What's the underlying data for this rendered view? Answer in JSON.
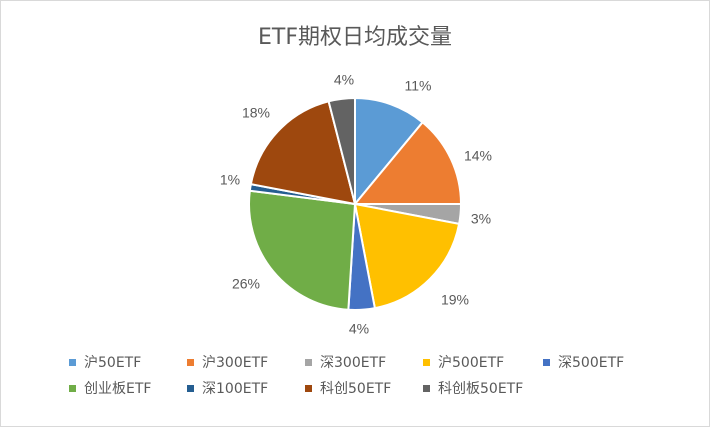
{
  "chart_data": {
    "type": "pie",
    "title": "ETF期权日均成交量",
    "slices": [
      {
        "name": "沪50ETF",
        "value": 11,
        "label": "11%",
        "color": "#5b9bd5"
      },
      {
        "name": "沪300ETF",
        "value": 14,
        "label": "14%",
        "color": "#ed7d31"
      },
      {
        "name": "深300ETF",
        "value": 3,
        "label": "3%",
        "color": "#a5a5a5"
      },
      {
        "name": "沪500ETF",
        "value": 19,
        "label": "19%",
        "color": "#ffc000"
      },
      {
        "name": "深500ETF",
        "value": 4,
        "label": "4%",
        "color": "#4472c4"
      },
      {
        "name": "创业板ETF",
        "value": 26,
        "label": "26%",
        "color": "#70ad47"
      },
      {
        "name": "深100ETF",
        "value": 1,
        "label": "1%",
        "color": "#255e91"
      },
      {
        "name": "科创50ETF",
        "value": 18,
        "label": "18%",
        "color": "#9e480e"
      },
      {
        "name": "科创板50ETF",
        "value": 4,
        "label": "4%",
        "color": "#636363"
      }
    ],
    "legend": "bottom"
  }
}
